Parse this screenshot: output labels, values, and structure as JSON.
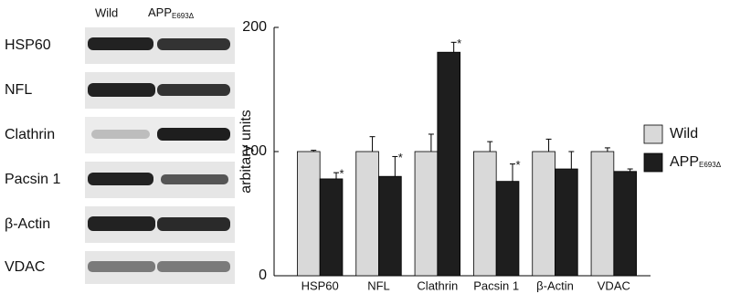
{
  "blot": {
    "columns": [
      "Wild",
      "APP"
    ],
    "column_subscript": "E693Δ",
    "rows": [
      "HSP60",
      "NFL",
      "Clathrin",
      "Pacsin 1",
      "β-Actin",
      "VDAC"
    ]
  },
  "chart_data": {
    "type": "bar",
    "y_label": "arbitary units",
    "categories": [
      "HSP60",
      "NFL",
      "Clathrin",
      "Pacsin 1",
      "β-Actin",
      "VDAC"
    ],
    "series": [
      {
        "name": "Wild",
        "color": "#d9d9d9",
        "values": [
          100,
          100,
          100,
          100,
          100,
          100
        ],
        "errors": [
          1,
          12,
          14,
          8,
          10,
          3
        ],
        "annotations": [
          null,
          null,
          null,
          null,
          null,
          null
        ]
      },
      {
        "name": "APP",
        "name_subscript": "E693Δ",
        "color": "#1e1e1e",
        "values": [
          78,
          80,
          180,
          76,
          86,
          84
        ],
        "errors": [
          5,
          16,
          8,
          14,
          14,
          2
        ],
        "annotations": [
          "*",
          "*",
          "*",
          "*",
          null,
          null
        ]
      }
    ],
    "ylim": [
      0,
      200
    ],
    "yticks": [
      0,
      100,
      200
    ],
    "legend": "right"
  }
}
